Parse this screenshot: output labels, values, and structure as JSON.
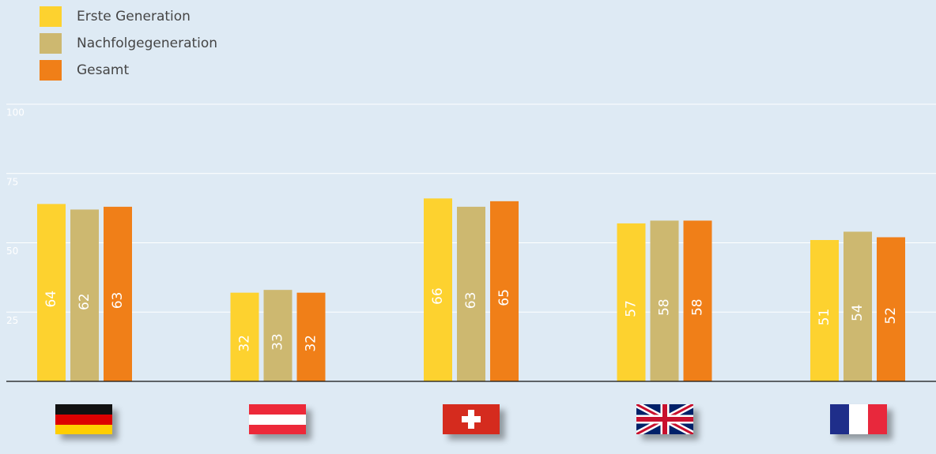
{
  "chart_data": {
    "type": "bar",
    "categories": [
      null,
      null,
      null,
      null,
      null
    ],
    "series": [
      {
        "name": "Erste Generation",
        "color": "#fdd22f",
        "values": [
          64,
          32,
          66,
          57,
          51
        ]
      },
      {
        "name": "Nachfolgegeneration",
        "color": "#cdb870",
        "values": [
          62,
          33,
          63,
          58,
          54
        ]
      },
      {
        "name": "Gesamt",
        "color": "#f07f18",
        "values": [
          63,
          32,
          65,
          58,
          52
        ]
      }
    ],
    "ylim": [
      0,
      100
    ],
    "yticks": [
      25,
      50,
      75,
      100
    ],
    "grid": true,
    "legend": "top-left"
  }
}
